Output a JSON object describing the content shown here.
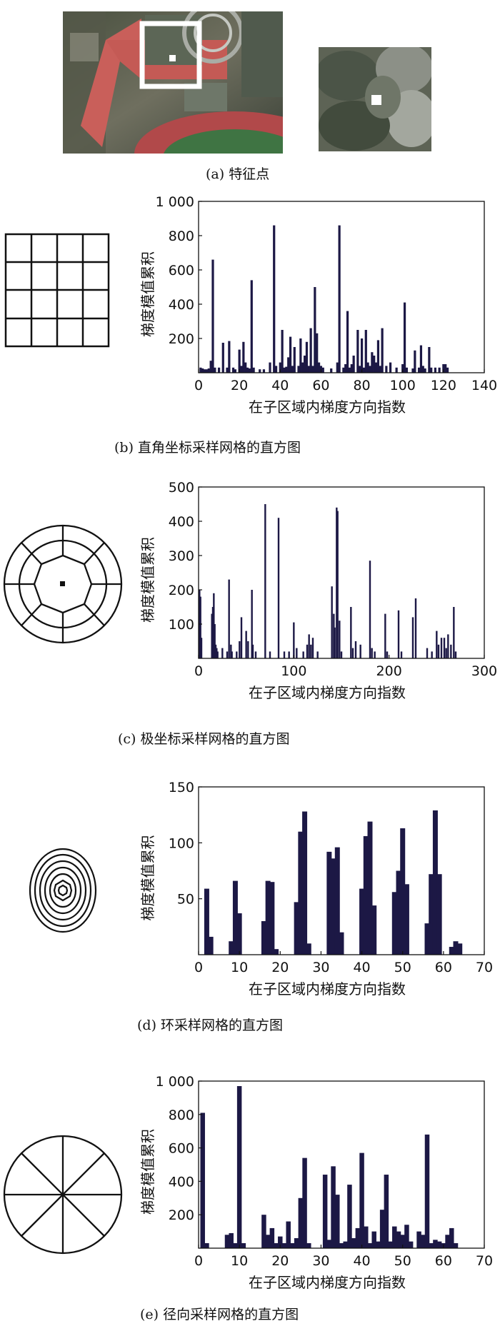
{
  "photos": {
    "left": {
      "label": "aerial-photo-with-feature-window"
    },
    "right": {
      "label": "zoomed-feature-patch"
    }
  },
  "captions": {
    "a": "(a) 特征点",
    "b": "(b) 直角坐标采样网格的直方图",
    "c": "(c) 极坐标采样网格的直方图",
    "d": "(d) 环采样网格的直方图",
    "e": "(e) 径向采样网格的直方图"
  },
  "colors": {
    "bar": "#1c1845",
    "axis": "#111111"
  },
  "chart_data": [
    {
      "id": "b",
      "type": "bar",
      "title": "",
      "xlabel": "在子区域内梯度方向指数",
      "ylabel": "梯度模值累积",
      "xlim": [
        0,
        140
      ],
      "ylim": [
        0,
        1000
      ],
      "xticks": [
        0,
        20,
        40,
        60,
        80,
        100,
        120,
        140
      ],
      "yticks": [
        200,
        400,
        600,
        800,
        1000
      ],
      "ytick_labels": [
        "200",
        "400",
        "600",
        "800",
        "1 000"
      ],
      "x": [
        1,
        2,
        3,
        4,
        5,
        6,
        7,
        8,
        10,
        12,
        14,
        15,
        17,
        18,
        20,
        21,
        22,
        23,
        24,
        25,
        26,
        27,
        30,
        32,
        35,
        37,
        38,
        40,
        41,
        42,
        43,
        44,
        45,
        46,
        47,
        49,
        50,
        51,
        52,
        53,
        54,
        55,
        56,
        57,
        58,
        59,
        60,
        61,
        65,
        68,
        69,
        71,
        72,
        73,
        74,
        75,
        76,
        78,
        79,
        80,
        81,
        82,
        83,
        84,
        85,
        86,
        87,
        88,
        89,
        90,
        92,
        94,
        97,
        100,
        101,
        102,
        105,
        106,
        108,
        109,
        110,
        111,
        113,
        114,
        116,
        118,
        120,
        121,
        122
      ],
      "values": [
        30,
        25,
        20,
        20,
        25,
        70,
        660,
        30,
        30,
        175,
        30,
        185,
        30,
        20,
        135,
        40,
        180,
        60,
        30,
        25,
        540,
        30,
        20,
        20,
        60,
        860,
        40,
        60,
        250,
        30,
        35,
        90,
        210,
        40,
        150,
        40,
        200,
        60,
        100,
        180,
        40,
        260,
        40,
        500,
        230,
        60,
        40,
        30,
        25,
        60,
        860,
        30,
        50,
        360,
        30,
        50,
        100,
        250,
        40,
        200,
        30,
        250,
        60,
        40,
        120,
        100,
        60,
        190,
        40,
        260,
        40,
        60,
        30,
        50,
        410,
        30,
        25,
        130,
        30,
        160,
        40,
        25,
        150,
        30,
        30,
        30,
        50,
        50,
        30
      ]
    },
    {
      "id": "c",
      "type": "bar",
      "title": "",
      "xlabel": "在子区域内梯度方向指数",
      "ylabel": "梯度模值累积",
      "xlim": [
        0,
        300
      ],
      "ylim": [
        0,
        500
      ],
      "xticks": [
        0,
        100,
        200,
        300
      ],
      "yticks": [
        100,
        200,
        300,
        400,
        500
      ],
      "ytick_labels": [
        "100",
        "200",
        "300",
        "400",
        "500"
      ],
      "x": [
        1,
        2,
        3,
        14,
        15,
        16,
        17,
        18,
        19,
        20,
        25,
        30,
        32,
        34,
        35,
        40,
        43,
        45,
        50,
        52,
        56,
        57,
        60,
        70,
        75,
        84,
        90,
        95,
        100,
        103,
        110,
        114,
        116,
        118,
        120,
        125,
        140,
        142,
        143,
        145,
        146,
        148,
        150,
        160,
        162,
        165,
        170,
        180,
        182,
        185,
        196,
        198,
        210,
        213,
        225,
        228,
        240,
        245,
        250,
        252,
        255,
        258,
        260,
        262,
        265,
        268,
        270
      ],
      "values": [
        200,
        180,
        60,
        130,
        150,
        190,
        100,
        40,
        30,
        20,
        30,
        20,
        230,
        40,
        20,
        20,
        50,
        120,
        80,
        50,
        200,
        40,
        20,
        450,
        20,
        410,
        20,
        20,
        105,
        30,
        20,
        40,
        70,
        40,
        60,
        20,
        210,
        130,
        90,
        440,
        430,
        110,
        20,
        150,
        30,
        50,
        40,
        285,
        30,
        20,
        130,
        20,
        140,
        20,
        120,
        175,
        30,
        20,
        80,
        40,
        60,
        60,
        30,
        70,
        40,
        150,
        20
      ]
    },
    {
      "id": "d",
      "type": "bar",
      "title": "",
      "xlabel": "在子区域内梯度方向指数",
      "ylabel": "梯度模值累积",
      "xlim": [
        0,
        70
      ],
      "ylim": [
        0,
        150
      ],
      "xticks": [
        0,
        10,
        20,
        30,
        40,
        50,
        60,
        70
      ],
      "yticks": [
        50,
        100,
        150
      ],
      "ytick_labels": [
        "50",
        "100",
        "150"
      ],
      "x": [
        2,
        3,
        8,
        9,
        10,
        16,
        17,
        18,
        19,
        24,
        25,
        26,
        27,
        32,
        33,
        34,
        35,
        40,
        41,
        42,
        43,
        48,
        49,
        50,
        51,
        56,
        57,
        58,
        59,
        62,
        63,
        64
      ],
      "values": [
        59,
        16,
        12,
        66,
        37,
        30,
        66,
        65,
        5,
        47,
        110,
        128,
        10,
        92,
        86,
        96,
        20,
        59,
        106,
        119,
        44,
        56,
        75,
        113,
        63,
        28,
        72,
        129,
        72,
        7,
        12,
        10
      ]
    },
    {
      "id": "e",
      "type": "bar",
      "title": "",
      "xlabel": "在子区域内梯度方向指数",
      "ylabel": "梯度模值累积",
      "xlim": [
        0,
        70
      ],
      "ylim": [
        0,
        1000
      ],
      "xticks": [
        0,
        10,
        20,
        30,
        40,
        50,
        60,
        70
      ],
      "yticks": [
        200,
        400,
        600,
        800,
        1000
      ],
      "ytick_labels": [
        "200",
        "400",
        "600",
        "800",
        "1 000"
      ],
      "x": [
        1,
        2,
        7,
        8,
        9,
        10,
        11,
        16,
        17,
        18,
        19,
        20,
        21,
        22,
        23,
        24,
        25,
        26,
        27,
        31,
        32,
        33,
        34,
        35,
        36,
        37,
        38,
        39,
        40,
        41,
        42,
        43,
        44,
        45,
        46,
        47,
        48,
        49,
        50,
        51,
        52,
        54,
        55,
        56,
        57,
        58,
        59,
        60,
        61,
        62,
        63
      ],
      "values": [
        810,
        30,
        80,
        90,
        30,
        970,
        30,
        200,
        80,
        120,
        30,
        70,
        30,
        160,
        30,
        60,
        300,
        540,
        30,
        440,
        50,
        490,
        320,
        30,
        40,
        380,
        60,
        120,
        570,
        130,
        30,
        100,
        40,
        230,
        440,
        40,
        130,
        100,
        80,
        140,
        40,
        100,
        80,
        680,
        30,
        50,
        40,
        30,
        80,
        120,
        30
      ]
    }
  ]
}
